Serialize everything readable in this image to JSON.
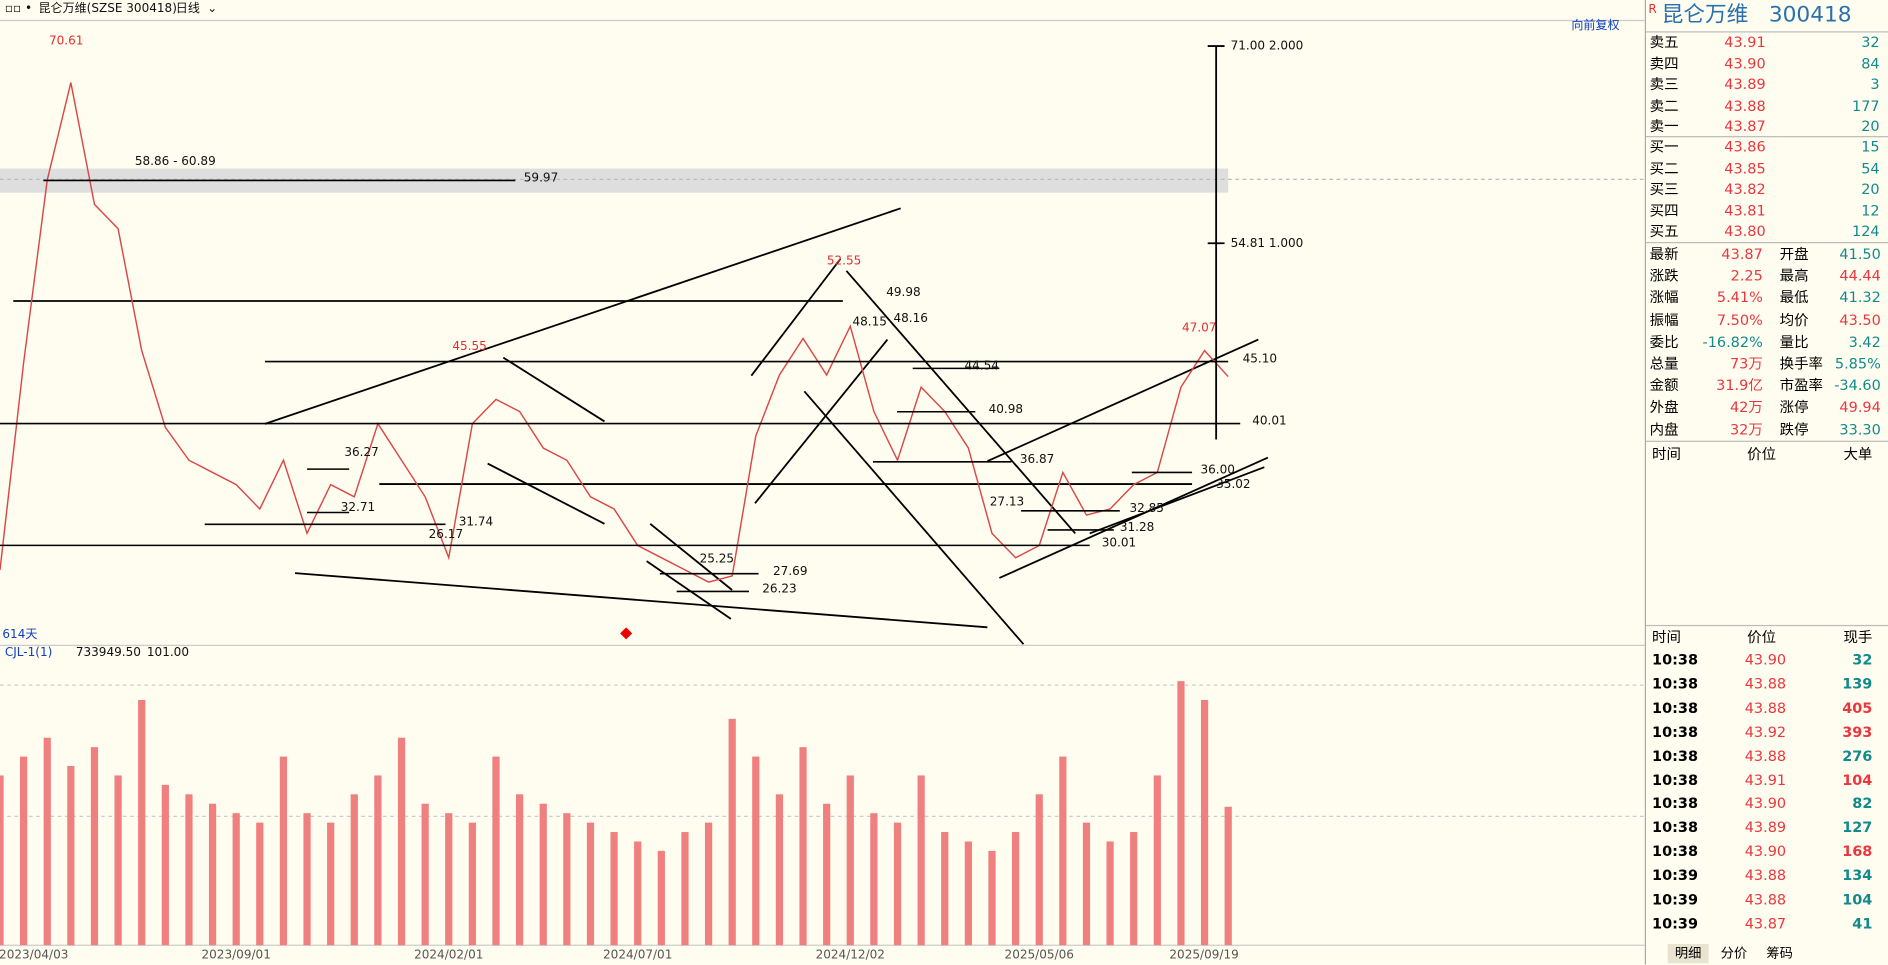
{
  "toolbar": {
    "title": "昆仑万维(SZSE 300418)",
    "period": "日线"
  },
  "chart_data": [
    {
      "type": "line",
      "color": "#d94848",
      "ylim": [
        21.9,
        73.1
      ],
      "values": [
        28,
        45,
        60,
        68,
        58,
        56,
        46,
        39.7,
        37,
        36,
        35,
        33,
        37,
        31,
        35,
        34,
        40,
        37,
        34,
        29,
        40,
        42,
        41,
        38,
        37,
        34,
        33,
        30,
        29,
        28,
        27,
        27.5,
        39,
        44,
        47,
        44,
        48,
        41,
        37,
        43,
        41,
        38,
        31,
        29,
        30,
        36,
        32.5,
        33,
        35,
        36,
        43,
        46,
        43.87
      ],
      "day_count_label": "614天",
      "restore_label": "向前复权",
      "range_label": "58.86 - 60.89",
      "peak_labels": [
        70.61,
        45.55,
        52.55,
        47.07
      ],
      "levels": [
        59.97,
        {
          "value": 45.1,
          "label": "45.10"
        },
        40.01,
        36.27,
        32.71,
        31.74,
        26.17,
        27.69,
        26.23,
        25.25,
        44.54,
        40.98,
        36.87,
        {
          "value": 36,
          "label": "36.00"
        },
        35.02,
        32.85,
        31.28,
        30.01,
        27.13,
        49.98,
        48.15,
        48.16
      ],
      "fib_levels": [
        {
          "value": 71,
          "label": "71.00 2.000"
        },
        {
          "value": 54.81,
          "label": "54.81 1.000"
        }
      ]
    },
    {
      "type": "bar",
      "color": "#f08080",
      "ylim": [
        0,
        1500000
      ],
      "indicator_label": "CJL-1(1)",
      "indicator_values": [
        {
          "value": 733949.5,
          "label": "733949.50"
        },
        {
          "value": 101,
          "label": "101.00"
        }
      ],
      "categories": [
        null,
        "2023/04/03",
        null,
        null,
        null,
        null,
        null,
        null,
        null,
        null,
        "2023/09/01",
        null,
        null,
        null,
        null,
        null,
        null,
        null,
        null,
        "2024/02/01",
        null,
        null,
        null,
        null,
        null,
        null,
        null,
        "2024/07/01",
        null,
        null,
        null,
        null,
        null,
        null,
        null,
        null,
        "2024/12/02",
        null,
        null,
        null,
        null,
        null,
        null,
        null,
        "2025/05/06",
        null,
        null,
        null,
        null,
        null,
        null,
        null,
        "2025/09/19"
      ],
      "values": [
        900000,
        1000000,
        1100000,
        950000,
        1050000,
        900000,
        1300000,
        850000,
        800000,
        750000,
        700000,
        650000,
        1000000,
        700000,
        650000,
        800000,
        900000,
        1100000,
        750000,
        700000,
        650000,
        1000000,
        800000,
        750000,
        700000,
        650000,
        600000,
        550000,
        500000,
        600000,
        650000,
        1200000,
        1000000,
        800000,
        1050000,
        750000,
        900000,
        700000,
        650000,
        900000,
        600000,
        550000,
        500000,
        600000,
        800000,
        1000000,
        650000,
        550000,
        600000,
        900000,
        1400000,
        1300000,
        733949.5
      ]
    }
  ],
  "quote": {
    "flag": "R",
    "name": "昆仑万维",
    "code": "300418",
    "colors": {
      "up": "#e8373f",
      "down": "#12898c"
    },
    "asks": [
      {
        "label": "卖五",
        "price": "43.91",
        "volume": "32"
      },
      {
        "label": "卖四",
        "price": "43.90",
        "volume": "84"
      },
      {
        "label": "卖三",
        "price": "43.89",
        "volume": "3"
      },
      {
        "label": "卖二",
        "price": "43.88",
        "volume": "177"
      },
      {
        "label": "卖一",
        "price": "43.87",
        "volume": "20"
      }
    ],
    "bids": [
      {
        "label": "买一",
        "price": "43.86",
        "volume": "15"
      },
      {
        "label": "买二",
        "price": "43.85",
        "volume": "54"
      },
      {
        "label": "买三",
        "price": "43.82",
        "volume": "20"
      },
      {
        "label": "买四",
        "price": "43.81",
        "volume": "12"
      },
      {
        "label": "买五",
        "price": "43.80",
        "volume": "124"
      }
    ],
    "stats": [
      {
        "left": {
          "label": "最新",
          "value": "43.87",
          "tone": "up"
        },
        "right": {
          "label": "开盘",
          "value": "41.50",
          "tone": "down"
        }
      },
      {
        "left": {
          "label": "涨跌",
          "value": "2.25",
          "tone": "up"
        },
        "right": {
          "label": "最高",
          "value": "44.44",
          "tone": "up"
        }
      },
      {
        "left": {
          "label": "涨幅",
          "value": "5.41%",
          "tone": "up"
        },
        "right": {
          "label": "最低",
          "value": "41.32",
          "tone": "down"
        }
      },
      {
        "left": {
          "label": "振幅",
          "value": "7.50%",
          "tone": "up"
        },
        "right": {
          "label": "均价",
          "value": "43.50",
          "tone": "up"
        }
      },
      {
        "left": {
          "label": "委比",
          "value": "-16.82%",
          "tone": "down"
        },
        "right": {
          "label": "量比",
          "value": "3.42",
          "tone": "down"
        }
      },
      {
        "left": {
          "label": "总量",
          "value": "73万",
          "tone": "up"
        },
        "right": {
          "label": "换手率",
          "value": "5.85%",
          "tone": "down"
        }
      },
      {
        "left": {
          "label": "金额",
          "value": "31.9亿",
          "tone": "up"
        },
        "right": {
          "label": "市盈率",
          "value": "-34.60",
          "tone": "down"
        }
      },
      {
        "left": {
          "label": "外盘",
          "value": "42万",
          "tone": "up"
        },
        "right": {
          "label": "涨停",
          "value": "49.94",
          "tone": "up"
        }
      },
      {
        "left": {
          "label": "内盘",
          "value": "32万",
          "tone": "up"
        },
        "right": {
          "label": "跌停",
          "value": "33.30",
          "tone": "down"
        }
      }
    ],
    "big_orders_header": [
      "时间",
      "价位",
      "大单"
    ],
    "trades_header": [
      "时间",
      "价位",
      "现手"
    ],
    "trades": [
      {
        "time": "10:38",
        "price": "43.90",
        "volume": "32",
        "tone": "down"
      },
      {
        "time": "10:38",
        "price": "43.88",
        "volume": "139",
        "tone": "down"
      },
      {
        "time": "10:38",
        "price": "43.88",
        "volume": "405",
        "tone": "up"
      },
      {
        "time": "10:38",
        "price": "43.92",
        "volume": "393",
        "tone": "up"
      },
      {
        "time": "10:38",
        "price": "43.88",
        "volume": "276",
        "tone": "down"
      },
      {
        "time": "10:38",
        "price": "43.91",
        "volume": "104",
        "tone": "up"
      },
      {
        "time": "10:38",
        "price": "43.90",
        "volume": "82",
        "tone": "down"
      },
      {
        "time": "10:38",
        "price": "43.89",
        "volume": "127",
        "tone": "down"
      },
      {
        "time": "10:38",
        "price": "43.90",
        "volume": "168",
        "tone": "up"
      },
      {
        "time": "10:39",
        "price": "43.88",
        "volume": "134",
        "tone": "down"
      },
      {
        "time": "10:39",
        "price": "43.88",
        "volume": "104",
        "tone": "down"
      },
      {
        "time": "10:39",
        "price": "43.87",
        "volume": "41",
        "tone": "down"
      }
    ],
    "tabs": [
      "明细",
      "分价",
      "筹码"
    ]
  }
}
